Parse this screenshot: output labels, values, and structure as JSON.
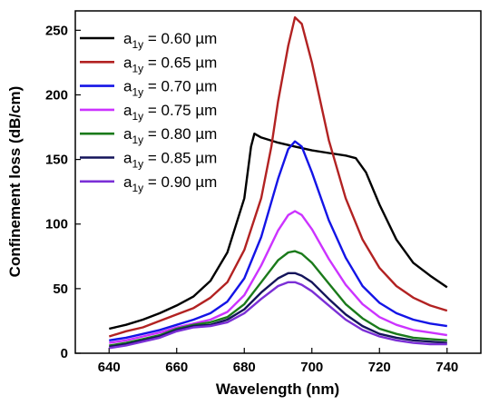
{
  "chart_data": {
    "type": "line",
    "title": "",
    "xlabel": "Wavelength (nm)",
    "ylabel": "Confinement loss (dB/cm)",
    "xlim": [
      630,
      750
    ],
    "ylim": [
      0,
      265
    ],
    "xticks": [
      640,
      660,
      680,
      700,
      720,
      740
    ],
    "yticks": [
      0,
      50,
      100,
      150,
      200,
      250
    ],
    "grid": false,
    "legend_position": "top-left",
    "series": [
      {
        "name_prefix": "a",
        "name_sub": "1y",
        "name_suffix": " = 0.60 µm",
        "color": "#000000",
        "points": [
          [
            640,
            19
          ],
          [
            645,
            22
          ],
          [
            650,
            26
          ],
          [
            655,
            31
          ],
          [
            660,
            37
          ],
          [
            665,
            44
          ],
          [
            670,
            56
          ],
          [
            675,
            78
          ],
          [
            680,
            120
          ],
          [
            682,
            160
          ],
          [
            683,
            170
          ],
          [
            685,
            167
          ],
          [
            690,
            163
          ],
          [
            695,
            160
          ],
          [
            700,
            157
          ],
          [
            705,
            155
          ],
          [
            710,
            153
          ],
          [
            713,
            151
          ],
          [
            716,
            140
          ],
          [
            720,
            115
          ],
          [
            725,
            88
          ],
          [
            730,
            70
          ],
          [
            735,
            60
          ],
          [
            740,
            51
          ]
        ]
      },
      {
        "name_prefix": "a",
        "name_sub": "1y",
        "name_suffix": " = 0.65 µm",
        "color": "#b22222",
        "points": [
          [
            640,
            13
          ],
          [
            645,
            17
          ],
          [
            650,
            20
          ],
          [
            655,
            25
          ],
          [
            660,
            30
          ],
          [
            665,
            35
          ],
          [
            670,
            43
          ],
          [
            675,
            55
          ],
          [
            680,
            80
          ],
          [
            685,
            120
          ],
          [
            688,
            160
          ],
          [
            690,
            195
          ],
          [
            693,
            238
          ],
          [
            695,
            260
          ],
          [
            697,
            255
          ],
          [
            700,
            225
          ],
          [
            705,
            165
          ],
          [
            710,
            120
          ],
          [
            715,
            88
          ],
          [
            720,
            66
          ],
          [
            725,
            52
          ],
          [
            730,
            43
          ],
          [
            735,
            37
          ],
          [
            740,
            33
          ]
        ]
      },
      {
        "name_prefix": "a",
        "name_sub": "1y",
        "name_suffix": " = 0.70 µm",
        "color": "#1414e6",
        "points": [
          [
            640,
            10
          ],
          [
            645,
            12
          ],
          [
            650,
            15
          ],
          [
            655,
            18
          ],
          [
            660,
            22
          ],
          [
            665,
            26
          ],
          [
            670,
            31
          ],
          [
            675,
            40
          ],
          [
            680,
            58
          ],
          [
            685,
            90
          ],
          [
            690,
            135
          ],
          [
            693,
            158
          ],
          [
            695,
            164
          ],
          [
            697,
            160
          ],
          [
            700,
            140
          ],
          [
            705,
            103
          ],
          [
            710,
            74
          ],
          [
            715,
            52
          ],
          [
            720,
            39
          ],
          [
            725,
            31
          ],
          [
            730,
            26
          ],
          [
            735,
            23
          ],
          [
            740,
            21
          ]
        ]
      },
      {
        "name_prefix": "a",
        "name_sub": "1y",
        "name_suffix": " = 0.75 µm",
        "color": "#cc33ff",
        "points": [
          [
            640,
            8
          ],
          [
            645,
            10
          ],
          [
            650,
            13
          ],
          [
            655,
            16
          ],
          [
            660,
            20
          ],
          [
            665,
            23
          ],
          [
            670,
            26
          ],
          [
            675,
            32
          ],
          [
            680,
            45
          ],
          [
            685,
            68
          ],
          [
            690,
            95
          ],
          [
            693,
            107
          ],
          [
            695,
            110
          ],
          [
            697,
            107
          ],
          [
            700,
            96
          ],
          [
            705,
            73
          ],
          [
            710,
            53
          ],
          [
            715,
            38
          ],
          [
            720,
            28
          ],
          [
            725,
            22
          ],
          [
            730,
            18
          ],
          [
            735,
            16
          ],
          [
            740,
            14
          ]
        ]
      },
      {
        "name_prefix": "a",
        "name_sub": "1y",
        "name_suffix": " = 0.80 µm",
        "color": "#1a7a1a",
        "points": [
          [
            640,
            6
          ],
          [
            645,
            8
          ],
          [
            650,
            11
          ],
          [
            655,
            14
          ],
          [
            660,
            19
          ],
          [
            665,
            22
          ],
          [
            670,
            24
          ],
          [
            675,
            28
          ],
          [
            680,
            38
          ],
          [
            685,
            55
          ],
          [
            690,
            72
          ],
          [
            693,
            78
          ],
          [
            695,
            79
          ],
          [
            697,
            77
          ],
          [
            700,
            70
          ],
          [
            705,
            54
          ],
          [
            710,
            38
          ],
          [
            715,
            27
          ],
          [
            720,
            19
          ],
          [
            725,
            15
          ],
          [
            730,
            12
          ],
          [
            735,
            11
          ],
          [
            740,
            10
          ]
        ]
      },
      {
        "name_prefix": "a",
        "name_sub": "1y",
        "name_suffix": " = 0.85 µm",
        "color": "#14145a",
        "points": [
          [
            640,
            5
          ],
          [
            645,
            7
          ],
          [
            650,
            10
          ],
          [
            655,
            13
          ],
          [
            660,
            18
          ],
          [
            665,
            21
          ],
          [
            670,
            22
          ],
          [
            675,
            26
          ],
          [
            680,
            34
          ],
          [
            685,
            47
          ],
          [
            690,
            58
          ],
          [
            693,
            62
          ],
          [
            695,
            62
          ],
          [
            697,
            60
          ],
          [
            700,
            55
          ],
          [
            705,
            42
          ],
          [
            710,
            30
          ],
          [
            715,
            21
          ],
          [
            720,
            15
          ],
          [
            725,
            12
          ],
          [
            730,
            10
          ],
          [
            735,
            9
          ],
          [
            740,
            8
          ]
        ]
      },
      {
        "name_prefix": "a",
        "name_sub": "1y",
        "name_suffix": " = 0.90 µm",
        "color": "#7b2fd6",
        "points": [
          [
            640,
            4
          ],
          [
            645,
            6
          ],
          [
            650,
            9
          ],
          [
            655,
            12
          ],
          [
            660,
            17
          ],
          [
            665,
            20
          ],
          [
            670,
            21
          ],
          [
            675,
            24
          ],
          [
            680,
            31
          ],
          [
            685,
            42
          ],
          [
            690,
            52
          ],
          [
            693,
            55
          ],
          [
            695,
            55
          ],
          [
            697,
            53
          ],
          [
            700,
            48
          ],
          [
            705,
            37
          ],
          [
            710,
            26
          ],
          [
            715,
            18
          ],
          [
            720,
            13
          ],
          [
            725,
            10
          ],
          [
            730,
            8
          ],
          [
            735,
            7
          ],
          [
            740,
            7
          ]
        ]
      }
    ]
  }
}
